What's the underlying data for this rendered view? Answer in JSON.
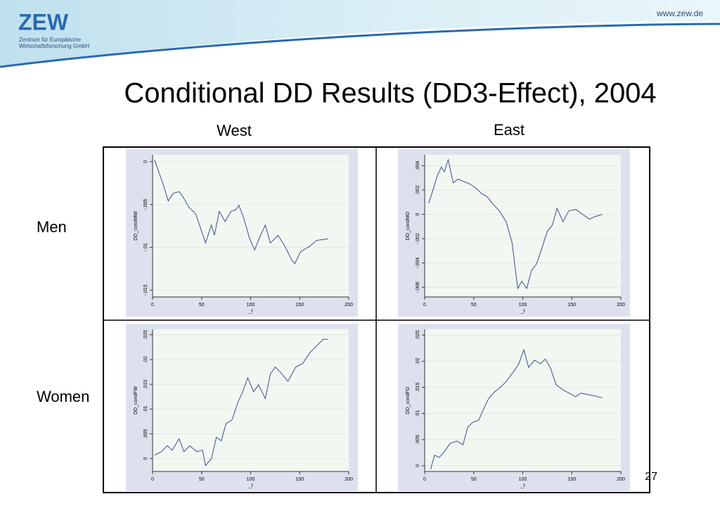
{
  "header": {
    "logo": "ZEW",
    "org_line1": "Zentrum für Europäische",
    "org_line2": "Wirtschaftsforschung GmbH",
    "url": "www.zew.de"
  },
  "title": "Conditional DD Results (DD3-Effect), 2004",
  "columns": [
    "West",
    "East"
  ],
  "rows": [
    "Men",
    "Women"
  ],
  "page_number": "27",
  "chart_data": [
    {
      "type": "line",
      "y_label": "DD_condMW",
      "x_label": "_t",
      "color": "#3c4f8a",
      "grid": true,
      "xlim": [
        0,
        200
      ],
      "xticks": [
        0,
        50,
        100,
        150,
        200
      ],
      "ylim": [
        -0.0158,
        0.0008
      ],
      "yticks": [
        {
          "value": -0.015,
          "label": "-.015"
        },
        {
          "value": -0.01,
          "label": "-.01"
        },
        {
          "value": -0.005,
          "label": "-.005"
        },
        0
      ],
      "x": [
        2,
        11,
        16,
        21,
        27,
        31,
        37,
        44,
        49,
        54,
        60,
        63,
        68,
        74,
        80,
        85,
        88,
        93,
        99,
        104,
        110,
        115,
        120,
        128,
        135,
        142,
        145,
        151,
        160,
        167,
        179
      ],
      "values": [
        0.0002,
        -0.0027,
        -0.0046,
        -0.0037,
        -0.0035,
        -0.0041,
        -0.0053,
        -0.0061,
        -0.0078,
        -0.0095,
        -0.0074,
        -0.0086,
        -0.0058,
        -0.007,
        -0.0058,
        -0.0056,
        -0.0051,
        -0.0066,
        -0.009,
        -0.0103,
        -0.0086,
        -0.0074,
        -0.0095,
        -0.0086,
        -0.0099,
        -0.0115,
        -0.0119,
        -0.0105,
        -0.0099,
        -0.0092,
        -0.009
      ]
    },
    {
      "type": "line",
      "y_label": "DD_condMO",
      "x_label": "_t",
      "color": "#3c4f8a",
      "grid": true,
      "xlim": [
        0,
        200
      ],
      "xticks": [
        0,
        50,
        100,
        150,
        200
      ],
      "ylim": [
        -0.0068,
        0.0049
      ],
      "yticks": [
        {
          "value": -0.006,
          "label": "-.006"
        },
        {
          "value": -0.004,
          "label": "-.004"
        },
        {
          "value": -0.002,
          "label": "-.002"
        },
        0,
        {
          "value": 0.002,
          "label": ".002"
        },
        {
          "value": 0.004,
          "label": ".004"
        }
      ],
      "x": [
        4,
        8,
        13,
        17,
        20,
        24,
        29,
        34,
        40,
        46,
        53,
        58,
        63,
        69,
        76,
        83,
        89,
        93,
        95,
        99,
        104,
        109,
        114,
        119,
        125,
        130,
        135,
        141,
        147,
        154,
        161,
        168,
        173,
        181
      ],
      "values": [
        0.0009,
        0.0019,
        0.0032,
        0.0039,
        0.0035,
        0.0045,
        0.0026,
        0.0029,
        0.0027,
        0.0025,
        0.0021,
        0.0017,
        0.0015,
        0.0009,
        0.0003,
        -0.0006,
        -0.0023,
        -0.0049,
        -0.0061,
        -0.0055,
        -0.0061,
        -0.0046,
        -0.0041,
        -0.0029,
        -0.0014,
        -0.0009,
        0.0005,
        -0.0006,
        0.0003,
        0.0004,
        0,
        -0.0004,
        -0.0002,
        0
      ]
    },
    {
      "type": "line",
      "y_label": "DD_condFW",
      "x_label": "_t",
      "color": "#3c4f8a",
      "grid": true,
      "xlim": [
        0,
        200
      ],
      "xticks": [
        0,
        50,
        100,
        150,
        200
      ],
      "ylim": [
        -0.0026,
        0.0261
      ],
      "yticks": [
        0,
        {
          "value": 0.005,
          "label": ".005"
        },
        {
          "value": 0.01,
          "label": ".01"
        },
        {
          "value": 0.015,
          "label": ".015"
        },
        {
          "value": 0.02,
          "label": ".02"
        },
        {
          "value": 0.025,
          "label": ".025"
        }
      ],
      "x": [
        2,
        9,
        15,
        20,
        27,
        32,
        38,
        45,
        51,
        54,
        60,
        65,
        70,
        75,
        81,
        87,
        92,
        97,
        103,
        108,
        115,
        120,
        125,
        131,
        138,
        146,
        153,
        160,
        167,
        174,
        179
      ],
      "values": [
        0.0007,
        0.0014,
        0.0026,
        0.0017,
        0.004,
        0.0014,
        0.0026,
        0.0014,
        0.0017,
        -0.0014,
        0,
        0.0043,
        0.0036,
        0.0071,
        0.0078,
        0.0114,
        0.0135,
        0.0163,
        0.0135,
        0.0149,
        0.0121,
        0.017,
        0.0185,
        0.0173,
        0.0156,
        0.0185,
        0.0192,
        0.0213,
        0.0227,
        0.0241,
        0.0241
      ]
    },
    {
      "type": "line",
      "y_label": "DD_condFO",
      "x_label": "_t",
      "color": "#3c4f8a",
      "grid": true,
      "xlim": [
        0,
        200
      ],
      "xticks": [
        0,
        50,
        100,
        150,
        200
      ],
      "ylim": [
        -0.0011,
        0.0261
      ],
      "yticks": [
        0,
        {
          "value": 0.005,
          "label": ".005"
        },
        {
          "value": 0.01,
          "label": ".01"
        },
        {
          "value": 0.015,
          "label": ".015"
        },
        {
          "value": 0.02,
          "label": ".02"
        },
        {
          "value": 0.025,
          "label": ".025"
        }
      ],
      "x": [
        6,
        10,
        15,
        20,
        26,
        33,
        39,
        44,
        49,
        55,
        60,
        65,
        71,
        76,
        83,
        91,
        96,
        101,
        106,
        112,
        118,
        123,
        128,
        134,
        141,
        149,
        154,
        159,
        170,
        181
      ],
      "values": [
        -0.0007,
        0.002,
        0.0016,
        0.0027,
        0.0043,
        0.0047,
        0.004,
        0.0074,
        0.0083,
        0.0087,
        0.0108,
        0.0128,
        0.0141,
        0.0148,
        0.0161,
        0.0181,
        0.0195,
        0.0222,
        0.0188,
        0.0202,
        0.0195,
        0.0204,
        0.0188,
        0.0155,
        0.0145,
        0.0137,
        0.0132,
        0.0139,
        0.0135,
        0.013
      ]
    }
  ]
}
